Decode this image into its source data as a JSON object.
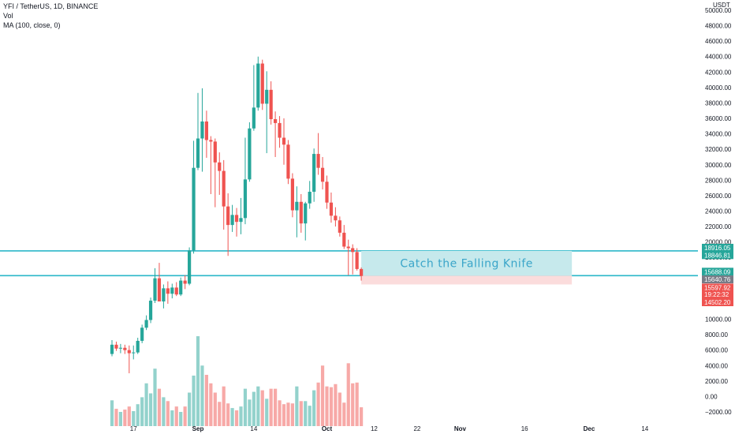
{
  "legend": {
    "symbol_line": "YFI / TetherUS, 1D, BINANCE",
    "vol_label": "Vol",
    "ma_label": "MA (100, close, 0)"
  },
  "colors": {
    "up": "#26a69a",
    "down": "#ef5350",
    "up_vol": "#93d2cc",
    "down_vol": "#f7a9a7",
    "level_line": "#2bb7c9",
    "box_fill": "#c6e9ec",
    "red_box_fill": "#fbdcdc",
    "annotation": "#3aa5c9",
    "tag_dark": "#787b86",
    "tag_red": "#ef5350",
    "tag_teal": "#26a69a"
  },
  "chart_data": {
    "type": "candlestick",
    "title": "YFI / TetherUS, 1D, BINANCE",
    "currency": "USDT",
    "ylim": [
      -3000,
      51000
    ],
    "y_ticks": [
      -2000,
      0,
      2000,
      4000,
      6000,
      8000,
      10000,
      12000,
      14000,
      16000,
      18000,
      20000,
      22000,
      24000,
      26000,
      28000,
      30000,
      32000,
      34000,
      36000,
      38000,
      40000,
      42000,
      44000,
      46000,
      48000,
      50000
    ],
    "y_tick_labels": [
      "−2000.00",
      "0.00",
      "2000.00",
      "4000.00",
      "6000.00",
      "8000.00",
      "10000.00",
      "12000.00",
      "14000.00",
      "16000.00",
      "18000.00",
      "20000.00",
      "22000.00",
      "24000.00",
      "26000.00",
      "28000.00",
      "30000.00",
      "32000.00",
      "34000.00",
      "36000.00",
      "38000.00",
      "40000.00",
      "42000.00",
      "44000.00",
      "46000.00",
      "48000.00",
      "50000.00"
    ],
    "x_range": [
      "2020-08-09",
      "2020-12-22"
    ],
    "x_ticks": [
      {
        "date": "2020-08-17",
        "label": "17",
        "bold": false
      },
      {
        "date": "2020-09-01",
        "label": "Sep",
        "bold": true
      },
      {
        "date": "2020-09-14",
        "label": "14",
        "bold": false
      },
      {
        "date": "2020-10-01",
        "label": "Oct",
        "bold": true
      },
      {
        "date": "2020-10-12",
        "label": "12",
        "bold": false
      },
      {
        "date": "2020-10-22",
        "label": "22",
        "bold": false
      },
      {
        "date": "2020-11-01",
        "label": "Nov",
        "bold": true
      },
      {
        "date": "2020-11-16",
        "label": "16",
        "bold": false
      },
      {
        "date": "2020-12-01",
        "label": "Dec",
        "bold": true
      },
      {
        "date": "2020-12-14",
        "label": "14",
        "bold": false
      }
    ],
    "candles": [
      {
        "date": "2020-08-12",
        "open": 5500,
        "high": 7300,
        "low": 5200,
        "close": 6700,
        "volume": -500
      },
      {
        "date": "2020-08-13",
        "open": 6700,
        "high": 7100,
        "low": 5900,
        "close": 6200,
        "volume": -1600
      },
      {
        "date": "2020-08-14",
        "open": 6200,
        "high": 6800,
        "low": 5600,
        "close": 6300,
        "volume": -2000
      },
      {
        "date": "2020-08-15",
        "open": 6300,
        "high": 6700,
        "low": 5500,
        "close": 6000,
        "volume": -1700
      },
      {
        "date": "2020-08-16",
        "open": 6000,
        "high": 6600,
        "low": 3000,
        "close": 5600,
        "volume": -1300
      },
      {
        "date": "2020-08-17",
        "open": 5600,
        "high": 6600,
        "low": 4800,
        "close": 5700,
        "volume": -1900
      },
      {
        "date": "2020-08-18",
        "open": 5700,
        "high": 7600,
        "low": 5500,
        "close": 7200,
        "volume": -1000
      },
      {
        "date": "2020-08-19",
        "open": 7200,
        "high": 9300,
        "low": 6900,
        "close": 8900,
        "volume": -100
      },
      {
        "date": "2020-08-20",
        "open": 8900,
        "high": 10500,
        "low": 8600,
        "close": 9900,
        "volume": 1700
      },
      {
        "date": "2020-08-21",
        "open": 9900,
        "high": 12800,
        "low": 9500,
        "close": 12400,
        "volume": 400
      },
      {
        "date": "2020-08-22",
        "open": 12400,
        "high": 16600,
        "low": 12100,
        "close": 15300,
        "volume": 3600
      },
      {
        "date": "2020-08-23",
        "open": 15300,
        "high": 17300,
        "low": 12800,
        "close": 12300,
        "volume": 1000
      },
      {
        "date": "2020-08-24",
        "open": 12300,
        "high": 14500,
        "low": 11400,
        "close": 14000,
        "volume": -100
      },
      {
        "date": "2020-08-25",
        "open": 14000,
        "high": 14900,
        "low": 12000,
        "close": 13300,
        "volume": -600
      },
      {
        "date": "2020-08-26",
        "open": 13300,
        "high": 14600,
        "low": 12700,
        "close": 14100,
        "volume": -1800
      },
      {
        "date": "2020-08-27",
        "open": 14100,
        "high": 14800,
        "low": 13000,
        "close": 13200,
        "volume": -1300
      },
      {
        "date": "2020-08-28",
        "open": 13200,
        "high": 15400,
        "low": 13000,
        "close": 15000,
        "volume": -2000
      },
      {
        "date": "2020-08-29",
        "open": 15000,
        "high": 15700,
        "low": 13900,
        "close": 14600,
        "volume": -1300
      },
      {
        "date": "2020-08-30",
        "open": 14600,
        "high": 19300,
        "low": 14400,
        "close": 18900,
        "volume": 500
      },
      {
        "date": "2020-08-31",
        "open": 18900,
        "high": 33100,
        "low": 18500,
        "close": 29600,
        "volume": 2700
      },
      {
        "date": "2020-09-01",
        "open": 29600,
        "high": 39300,
        "low": 29300,
        "close": 33400,
        "volume": 7800
      },
      {
        "date": "2020-09-02",
        "open": 33400,
        "high": 39900,
        "low": 29100,
        "close": 35600,
        "volume": 4000
      },
      {
        "date": "2020-09-03",
        "open": 35600,
        "high": 37000,
        "low": 30900,
        "close": 33200,
        "volume": 2800
      },
      {
        "date": "2020-09-04",
        "open": 33200,
        "high": 33700,
        "low": 26200,
        "close": 33000,
        "volume": 1700
      },
      {
        "date": "2020-09-05",
        "open": 33000,
        "high": 33400,
        "low": 24500,
        "close": 30300,
        "volume": 500
      },
      {
        "date": "2020-09-06",
        "open": 30300,
        "high": 31600,
        "low": 26100,
        "close": 29200,
        "volume": -700
      },
      {
        "date": "2020-09-07",
        "open": 29200,
        "high": 30600,
        "low": 21600,
        "close": 24600,
        "volume": 1300
      },
      {
        "date": "2020-09-08",
        "open": 24600,
        "high": 26300,
        "low": 18200,
        "close": 22200,
        "volume": -900
      },
      {
        "date": "2020-09-09",
        "open": 22200,
        "high": 24800,
        "low": 21300,
        "close": 23500,
        "volume": -1500
      },
      {
        "date": "2020-09-10",
        "open": 23500,
        "high": 24400,
        "low": 20700,
        "close": 22600,
        "volume": -1800
      },
      {
        "date": "2020-09-11",
        "open": 22600,
        "high": 25700,
        "low": 21000,
        "close": 23100,
        "volume": -1300
      },
      {
        "date": "2020-09-12",
        "open": 23100,
        "high": 33500,
        "low": 22300,
        "close": 28100,
        "volume": 1000
      },
      {
        "date": "2020-09-13",
        "open": 28100,
        "high": 35500,
        "low": 27800,
        "close": 34700,
        "volume": -400
      },
      {
        "date": "2020-09-14",
        "open": 34700,
        "high": 42900,
        "low": 34400,
        "close": 37400,
        "volume": 600
      },
      {
        "date": "2020-09-15",
        "open": 37400,
        "high": 44000,
        "low": 37000,
        "close": 43100,
        "volume": 1300
      },
      {
        "date": "2020-09-16",
        "open": 43100,
        "high": 43600,
        "low": 37100,
        "close": 37900,
        "volume": 800
      },
      {
        "date": "2020-09-17",
        "open": 37900,
        "high": 42100,
        "low": 31500,
        "close": 39700,
        "volume": -300
      },
      {
        "date": "2020-09-18",
        "open": 39700,
        "high": 40800,
        "low": 35200,
        "close": 35900,
        "volume": 1000
      },
      {
        "date": "2020-09-19",
        "open": 35900,
        "high": 36900,
        "low": 31000,
        "close": 35400,
        "volume": 1000
      },
      {
        "date": "2020-09-20",
        "open": 35400,
        "high": 36300,
        "low": 32200,
        "close": 33500,
        "volume": -500
      },
      {
        "date": "2020-09-21",
        "open": 33500,
        "high": 36000,
        "low": 30000,
        "close": 32600,
        "volume": -1000
      },
      {
        "date": "2020-09-22",
        "open": 32600,
        "high": 33200,
        "low": 27500,
        "close": 28200,
        "volume": -800
      },
      {
        "date": "2020-09-23",
        "open": 28200,
        "high": 28900,
        "low": 23200,
        "close": 24100,
        "volume": -900
      },
      {
        "date": "2020-09-24",
        "open": 24100,
        "high": 27200,
        "low": 20600,
        "close": 25200,
        "volume": 1300
      },
      {
        "date": "2020-09-25",
        "open": 25200,
        "high": 26200,
        "low": 21200,
        "close": 22400,
        "volume": -600
      },
      {
        "date": "2020-09-26",
        "open": 22400,
        "high": 25200,
        "low": 20200,
        "close": 25000,
        "volume": -600
      },
      {
        "date": "2020-09-27",
        "open": 25000,
        "high": 27900,
        "low": 24300,
        "close": 26500,
        "volume": -1200
      },
      {
        "date": "2020-09-28",
        "open": 26500,
        "high": 32100,
        "low": 25200,
        "close": 31400,
        "volume": 800
      },
      {
        "date": "2020-09-29",
        "open": 31400,
        "high": 34100,
        "low": 28700,
        "close": 29600,
        "volume": 1800
      },
      {
        "date": "2020-09-30",
        "open": 29600,
        "high": 31000,
        "low": 26800,
        "close": 27800,
        "volume": 4000
      },
      {
        "date": "2020-10-01",
        "open": 27800,
        "high": 28600,
        "low": 24300,
        "close": 25100,
        "volume": 1300
      },
      {
        "date": "2020-10-02",
        "open": 25100,
        "high": 26400,
        "low": 22500,
        "close": 23400,
        "volume": 1200
      },
      {
        "date": "2020-10-03",
        "open": 23400,
        "high": 24500,
        "low": 22000,
        "close": 22800,
        "volume": 1600
      },
      {
        "date": "2020-10-04",
        "open": 22800,
        "high": 23300,
        "low": 20700,
        "close": 21200,
        "volume": 500
      },
      {
        "date": "2020-10-05",
        "open": 21200,
        "high": 22200,
        "low": 19100,
        "close": 19400,
        "volume": -800
      },
      {
        "date": "2020-10-06",
        "open": 19400,
        "high": 20300,
        "low": 15700,
        "close": 19200,
        "volume": 4300
      },
      {
        "date": "2020-10-07",
        "open": 19200,
        "high": 19700,
        "low": 15800,
        "close": 18700,
        "volume": 1700
      },
      {
        "date": "2020-10-08",
        "open": 18700,
        "high": 19200,
        "low": 16300,
        "close": 16500,
        "volume": 1800
      },
      {
        "date": "2020-10-09",
        "open": 16500,
        "high": 16700,
        "low": 15000,
        "close": 15600,
        "volume": -1400
      }
    ],
    "levels": [
      {
        "name": "resistance",
        "price": 18846.81
      },
      {
        "name": "support",
        "price": 15640.76
      }
    ],
    "annotation": {
      "text": "Catch the Falling Knife",
      "start_date": "2020-10-09",
      "end_date": "2020-11-27",
      "top_price": 18846.81,
      "mid_price": 15640.76,
      "bottom_price": 14502.2
    },
    "price_tags": [
      {
        "value": "18916.05",
        "price": 19250,
        "style": "teal"
      },
      {
        "value": "18846.81",
        "price": 18300,
        "style": "teal"
      },
      {
        "value": "15688.09",
        "price": 16150,
        "style": "teal"
      },
      {
        "value": "15640.76",
        "price": 15150,
        "style": "dark"
      },
      {
        "value": "15597.92",
        "price": 14100,
        "style": "red"
      },
      {
        "value": "19:22:32",
        "price": 13200,
        "style": "red"
      },
      {
        "value": "14502.20",
        "price": 12200,
        "style": "red"
      }
    ]
  }
}
